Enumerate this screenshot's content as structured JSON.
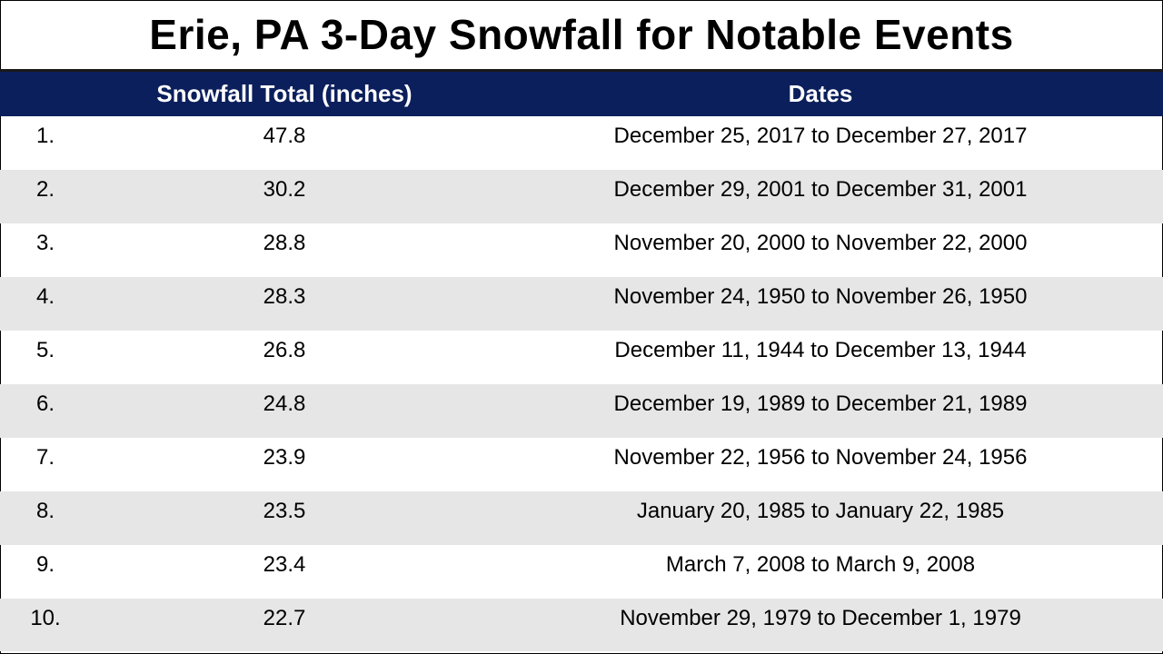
{
  "title": "Erie, PA 3-Day Snowfall for Notable Events",
  "table": {
    "columns": [
      "",
      "Snowfall Total (inches)",
      "Dates"
    ],
    "rows": [
      {
        "rank": "1.",
        "total": "47.8",
        "dates": "December 25, 2017 to December 27, 2017"
      },
      {
        "rank": "2.",
        "total": "30.2",
        "dates": "December 29, 2001 to December 31, 2001"
      },
      {
        "rank": "3.",
        "total": "28.8",
        "dates": "November 20, 2000 to November 22, 2000"
      },
      {
        "rank": "4.",
        "total": "28.3",
        "dates": "November 24, 1950 to November 26, 1950"
      },
      {
        "rank": "5.",
        "total": "26.8",
        "dates": "December 11, 1944 to December 13, 1944"
      },
      {
        "rank": "6.",
        "total": "24.8",
        "dates": "December 19, 1989 to December 21, 1989"
      },
      {
        "rank": "7.",
        "total": "23.9",
        "dates": "November 22, 1956 to November 24, 1956"
      },
      {
        "rank": "8.",
        "total": "23.5",
        "dates": "January 20, 1985 to January 22, 1985"
      },
      {
        "rank": "9.",
        "total": "23.4",
        "dates": "March 7, 2008 to March 9, 2008"
      },
      {
        "rank": "10.",
        "total": "22.7",
        "dates": "November 29, 1979 to December 1, 1979"
      }
    ]
  },
  "colors": {
    "header_bg": "#0b1f5c",
    "header_text": "#ffffff",
    "alt_row_bg": "#e6e6e6"
  }
}
